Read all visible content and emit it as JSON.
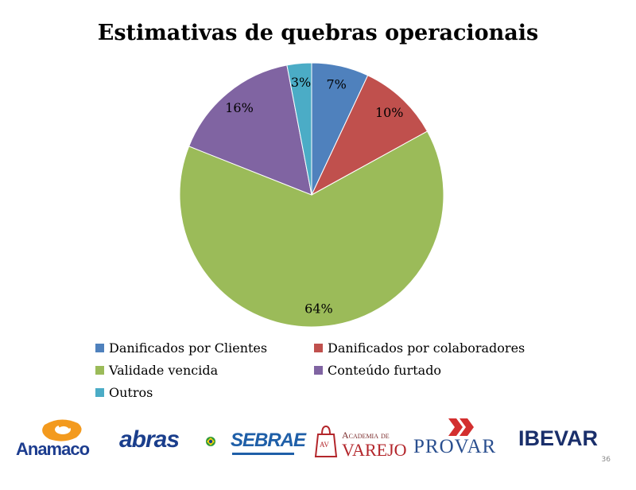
{
  "chart_data": {
    "type": "pie",
    "title": "Estimativas de quebras operacionais",
    "series": [
      {
        "name": "Danificados por Clientes",
        "value": 7,
        "label": "7%",
        "color": "#4f81bd"
      },
      {
        "name": "Danificados por colaboradores",
        "value": 10,
        "label": "10%",
        "color": "#c0504d"
      },
      {
        "name": "Validade vencida",
        "value": 64,
        "label": "64%",
        "color": "#9bbb59"
      },
      {
        "name": "Conteúdo furtado",
        "value": 16,
        "label": "16%",
        "color": "#8064a2"
      },
      {
        "name": "Outros",
        "value": 3,
        "label": "3%",
        "color": "#4bacc6"
      }
    ],
    "legend_position": "bottom"
  },
  "logos": {
    "anamaco": "Anamaco",
    "abras": "abras",
    "sebrae": "SEBRAE",
    "academia_line1": "Academia de",
    "academia_line2": "VAREJO",
    "academia_mark": "AV",
    "provar": "PROVAR",
    "ibevar": "IBEVAR"
  },
  "page_number": "36"
}
